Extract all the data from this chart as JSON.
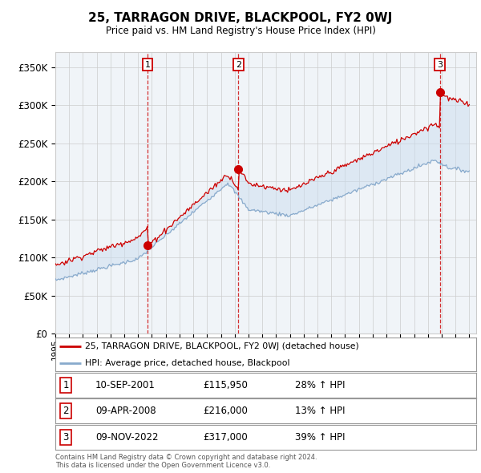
{
  "title": "25, TARRAGON DRIVE, BLACKPOOL, FY2 0WJ",
  "subtitle": "Price paid vs. HM Land Registry's House Price Index (HPI)",
  "red_label": "25, TARRAGON DRIVE, BLACKPOOL, FY2 0WJ (detached house)",
  "blue_label": "HPI: Average price, detached house, Blackpool",
  "transactions": [
    {
      "num": 1,
      "date": "10-SEP-2001",
      "price": 115950,
      "hpi_pct": "28% ↑ HPI",
      "year": 2001.69
    },
    {
      "num": 2,
      "date": "09-APR-2008",
      "price": 216000,
      "hpi_pct": "13% ↑ HPI",
      "year": 2008.27
    },
    {
      "num": 3,
      "date": "09-NOV-2022",
      "price": 317000,
      "hpi_pct": "39% ↑ HPI",
      "year": 2022.86
    }
  ],
  "footer1": "Contains HM Land Registry data © Crown copyright and database right 2024.",
  "footer2": "This data is licensed under the Open Government Licence v3.0.",
  "ylim": [
    0,
    370000
  ],
  "yticks": [
    0,
    50000,
    100000,
    150000,
    200000,
    250000,
    300000,
    350000
  ],
  "ylabels": [
    "£0",
    "£50K",
    "£100K",
    "£150K",
    "£200K",
    "£250K",
    "£300K",
    "£350K"
  ],
  "xstart": 1995,
  "xend": 2025,
  "background_color": "#ffffff",
  "plot_bg_color": "#f0f4f8",
  "grid_color": "#cccccc",
  "red_color": "#cc0000",
  "blue_color": "#88aacc",
  "shade_color": "#ccddf0"
}
